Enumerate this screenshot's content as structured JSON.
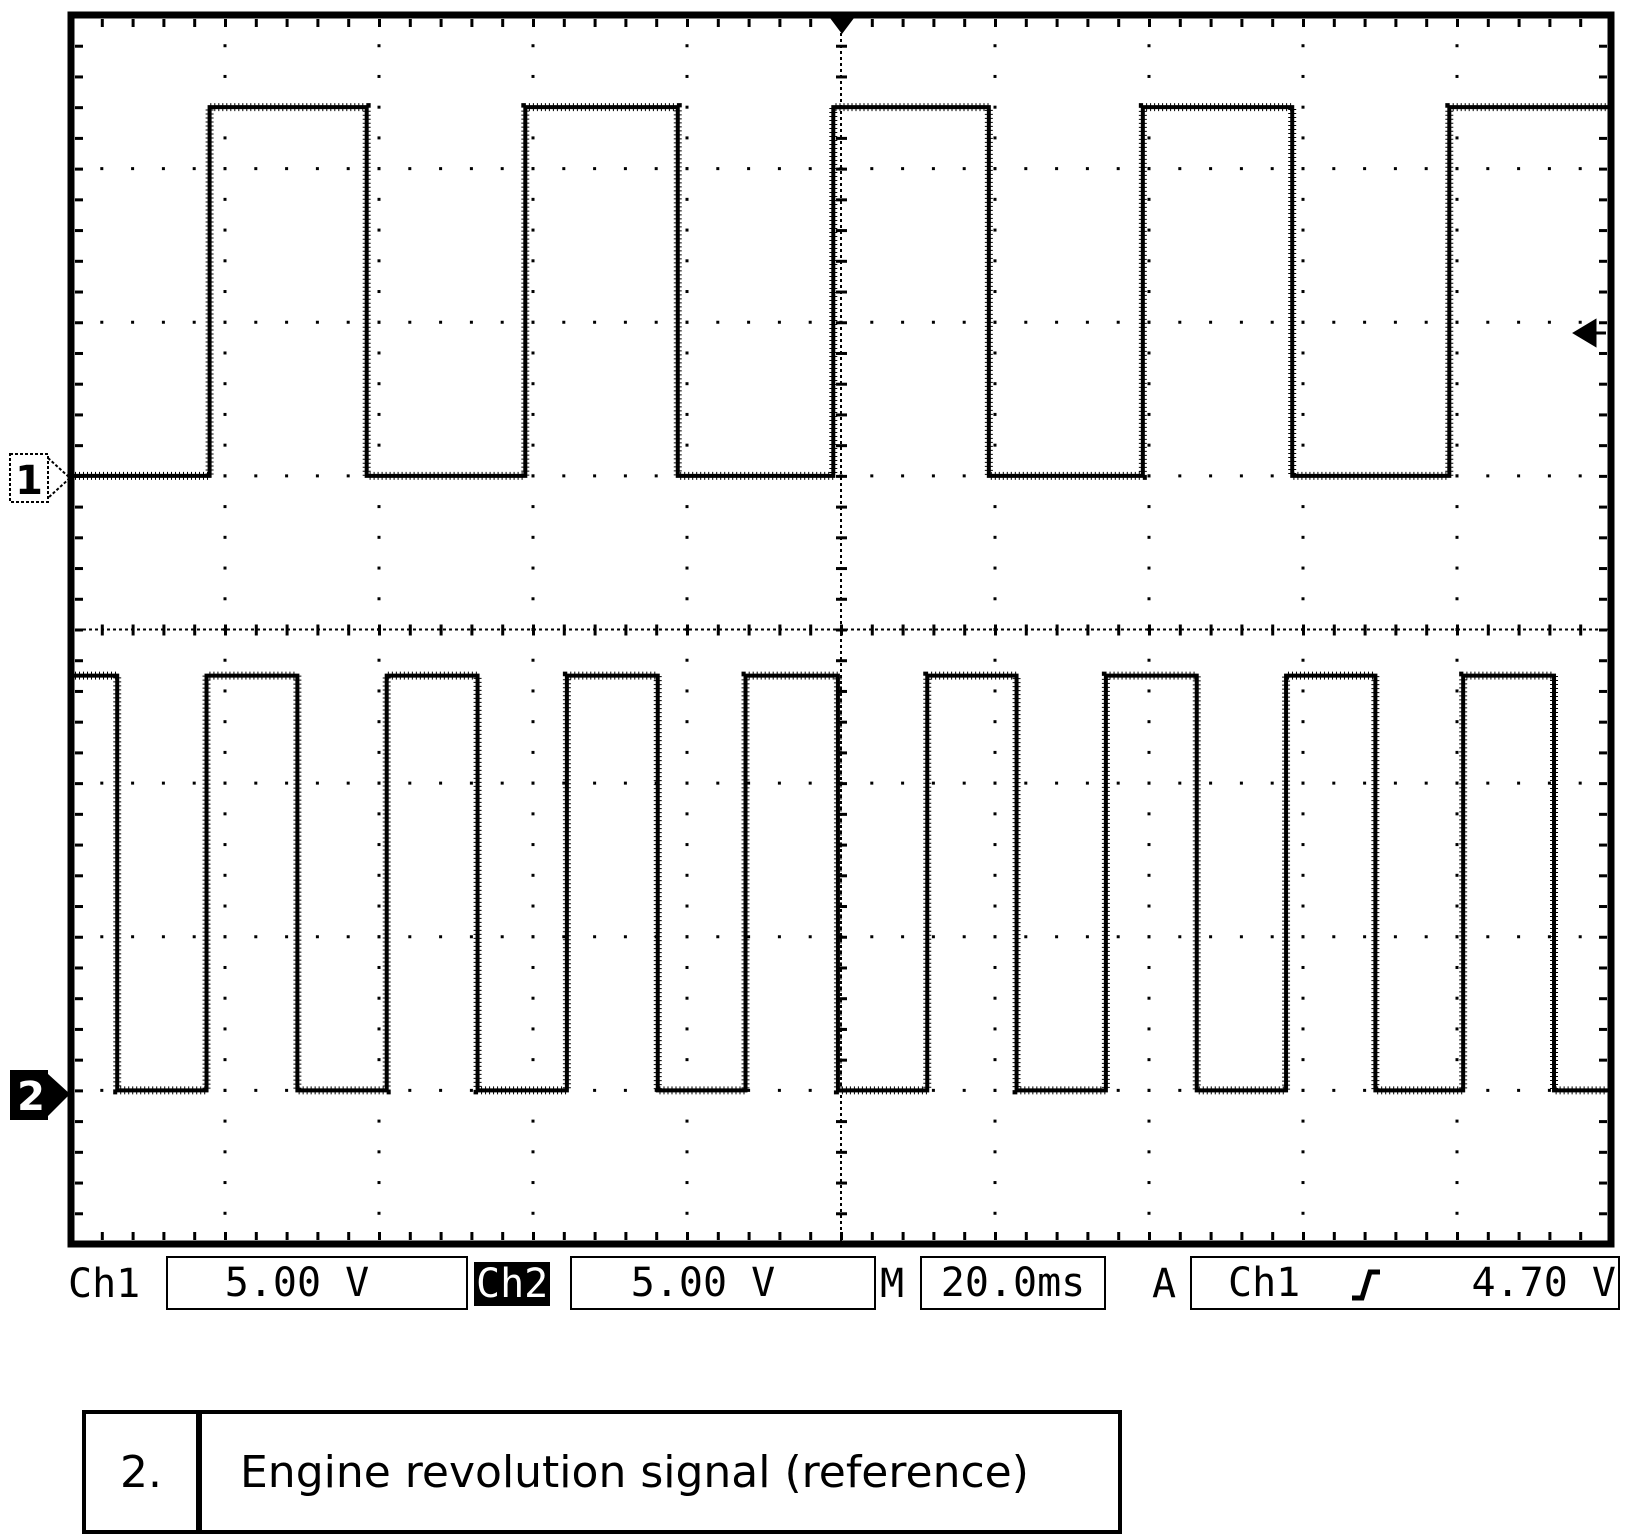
{
  "chart_data": {
    "type": "line",
    "title": "",
    "xlabel": "",
    "ylabel": "",
    "divisions": {
      "x": 10,
      "y": 8
    },
    "xlim_div": [
      0,
      10
    ],
    "ylim_div": [
      -4,
      4
    ],
    "trigger_position_div": 5,
    "series": [
      {
        "name": "",
        "channel_marker": "1",
        "scale_label": "5.00 V",
        "baseline_div": 1.0,
        "high_div": 3.4,
        "step": [
          [
            0,
            0
          ],
          [
            0.9,
            1
          ],
          [
            1.92,
            0
          ],
          [
            2.95,
            1
          ],
          [
            3.94,
            0
          ],
          [
            4.95,
            1
          ],
          [
            5.96,
            0
          ],
          [
            6.96,
            1
          ],
          [
            7.93,
            0
          ],
          [
            8.95,
            1
          ],
          [
            10,
            1
          ]
        ]
      },
      {
        "name": "",
        "channel_marker": "2",
        "scale_label": "5.00 V",
        "baseline_div": -3.0,
        "high_div": -0.3,
        "step": [
          [
            0,
            1
          ],
          [
            0.3,
            0
          ],
          [
            0.88,
            1
          ],
          [
            1.47,
            0
          ],
          [
            2.05,
            1
          ],
          [
            2.64,
            0
          ],
          [
            3.22,
            1
          ],
          [
            3.81,
            0
          ],
          [
            4.38,
            1
          ],
          [
            4.98,
            0
          ],
          [
            5.56,
            1
          ],
          [
            6.14,
            0
          ],
          [
            6.72,
            1
          ],
          [
            7.31,
            0
          ],
          [
            7.89,
            1
          ],
          [
            8.47,
            0
          ],
          [
            9.04,
            1
          ],
          [
            9.63,
            0
          ],
          [
            10,
            0
          ]
        ]
      }
    ]
  },
  "readouts": {
    "ch1_label": "Ch1",
    "ch1_scale": "5.00 V",
    "ch2_label": "Ch2",
    "ch2_scale": "5.00 V",
    "time_label": "M",
    "time_scale": "20.0ms",
    "trigger_label": "A",
    "trigger_source": "Ch1",
    "trigger_slope": "rising-edge-icon",
    "trigger_level": "4.70 V"
  },
  "caption": {
    "number": "2.",
    "text": "Engine revolution signal (reference)"
  }
}
